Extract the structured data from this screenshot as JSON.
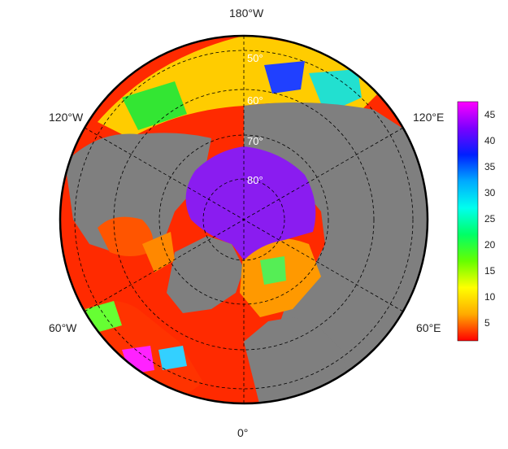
{
  "map": {
    "projection": "north-polar-stereographic",
    "longitude_labels": [
      "180°W",
      "120°E",
      "60°E",
      "0°",
      "60°W",
      "120°W"
    ],
    "latitude_labels": [
      "50°",
      "60°",
      "70°",
      "80°"
    ],
    "land_color": "#7f7f7f",
    "ice_color": "#8a1cf0",
    "coastline_color": "#000000"
  },
  "colorbar": {
    "ticks": [
      "45",
      "40",
      "35",
      "30",
      "25",
      "20",
      "15",
      "10",
      "5"
    ],
    "colors": [
      "#ff00ff",
      "#7b00ff",
      "#0020ff",
      "#00aaff",
      "#00ffee",
      "#00ff66",
      "#66ff00",
      "#ffff00",
      "#ffaa00",
      "#ff0000"
    ]
  }
}
